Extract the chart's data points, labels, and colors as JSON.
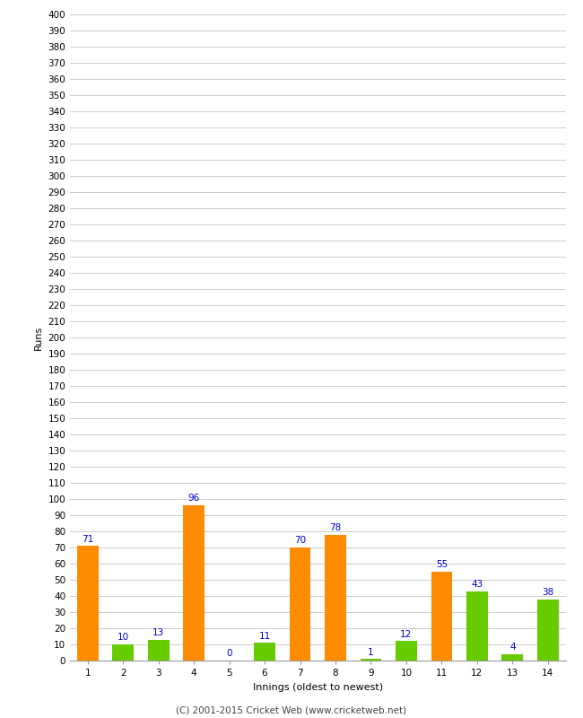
{
  "innings": [
    1,
    2,
    3,
    4,
    5,
    6,
    7,
    8,
    9,
    10,
    11,
    12,
    13,
    14
  ],
  "values": [
    71,
    10,
    13,
    96,
    0,
    11,
    70,
    78,
    1,
    12,
    55,
    43,
    4,
    38
  ],
  "colors": [
    "#FF8C00",
    "#66CC00",
    "#66CC00",
    "#FF8C00",
    "#66CC00",
    "#66CC00",
    "#FF8C00",
    "#FF8C00",
    "#66CC00",
    "#66CC00",
    "#FF8C00",
    "#66CC00",
    "#66CC00",
    "#66CC00"
  ],
  "label_color": "#0000CC",
  "xlabel": "Innings (oldest to newest)",
  "ylabel": "Runs",
  "ylim": [
    0,
    400
  ],
  "ytick_step": 10,
  "footer": "(C) 2001-2015 Cricket Web (www.cricketweb.net)",
  "background_color": "#FFFFFF",
  "grid_color": "#CCCCCC",
  "bar_width": 0.6,
  "label_fontsize": 7.5,
  "tick_fontsize": 7.5,
  "axis_label_fontsize": 8,
  "footer_fontsize": 7.5
}
